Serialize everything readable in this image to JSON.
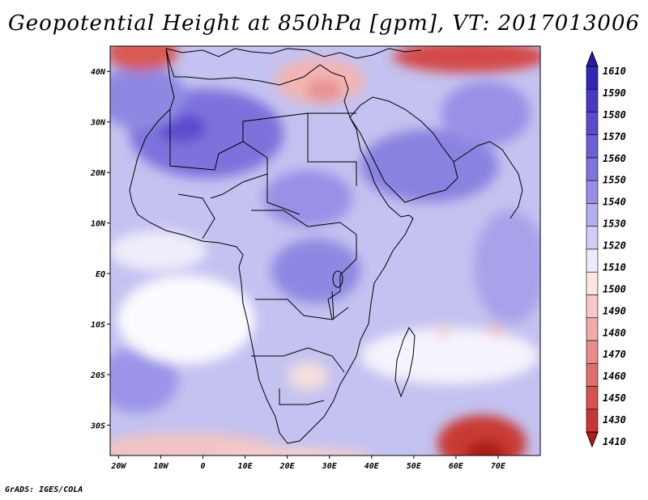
{
  "title": "Geopotential Height at 850hPa [gpm], VT: 2017013006",
  "footer": "GrADS: IGES/COLA",
  "map": {
    "lat_labels": [
      "40N",
      "30N",
      "20N",
      "10N",
      "EQ",
      "10S",
      "20S",
      "30S"
    ],
    "lat_values": [
      40,
      30,
      20,
      10,
      0,
      -10,
      -20,
      -30
    ],
    "lon_labels": [
      "20W",
      "10W",
      "0",
      "10E",
      "20E",
      "30E",
      "40E",
      "50E",
      "60E",
      "70E"
    ],
    "lon_values": [
      -20,
      -10,
      0,
      10,
      20,
      30,
      40,
      50,
      60,
      70
    ],
    "lon_range": [
      -22,
      80
    ],
    "lat_range": [
      -36,
      45
    ]
  },
  "colorbar": {
    "labels": [
      "1610",
      "1590",
      "1580",
      "1570",
      "1560",
      "1550",
      "1540",
      "1530",
      "1520",
      "1510",
      "1500",
      "1490",
      "1480",
      "1470",
      "1460",
      "1450",
      "1430",
      "1410"
    ],
    "colors": [
      "#2a1aa8",
      "#3526b8",
      "#4838c4",
      "#5a4ace",
      "#6c5fd6",
      "#7f74de",
      "#9790e6",
      "#b3afee",
      "#d0cef6",
      "#eceafb",
      "#fbe6e6",
      "#f6c8c8",
      "#efaaa9",
      "#e88c8b",
      "#e06e6c",
      "#d6524f",
      "#c93633",
      "#b31c19"
    ]
  }
}
